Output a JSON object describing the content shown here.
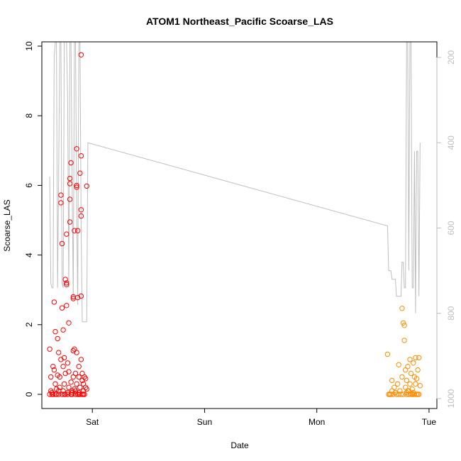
{
  "chart_data": {
    "type": "scatter",
    "title": "ATOM1 Northeast_Pacific Scoarse_LAS",
    "xlabel": "Date",
    "ylabel": "Scoarse_LAS",
    "x_ticks": [
      "Sat",
      "Sun",
      "Mon",
      "Tue"
    ],
    "x_tick_positions_days": [
      1,
      2,
      3,
      4
    ],
    "xlim_days": [
      0.55,
      4.07
    ],
    "ylim": [
      0,
      10
    ],
    "y_ticks": [
      "0",
      "2",
      "4",
      "6",
      "8",
      "10"
    ],
    "y2": {
      "label": "",
      "reversed": true,
      "lim": [
        1000,
        200
      ],
      "ticks": [
        "200",
        "400",
        "600",
        "800",
        "1000"
      ],
      "color": "#bebebe"
    },
    "colors": {
      "series1": "#ff0000",
      "series2": "#ff8c00",
      "line": "#bebebe"
    },
    "series": [
      {
        "name": "",
        "color": "#ff0000",
        "points": [
          [
            0.62,
            0.0
          ],
          [
            0.63,
            0.1
          ],
          [
            0.64,
            0.05
          ],
          [
            0.62,
            1.3
          ],
          [
            0.63,
            0.5
          ],
          [
            0.65,
            0.0
          ],
          [
            0.65,
            0.8
          ],
          [
            0.66,
            0.7
          ],
          [
            0.66,
            2.65
          ],
          [
            0.67,
            1.8
          ],
          [
            0.67,
            0.3
          ],
          [
            0.68,
            0.0
          ],
          [
            0.68,
            0.15
          ],
          [
            0.69,
            0.55
          ],
          [
            0.69,
            1.6
          ],
          [
            0.7,
            1.2
          ],
          [
            0.7,
            0.0
          ],
          [
            0.71,
            0.2
          ],
          [
            0.71,
            0.5
          ],
          [
            0.72,
            1.0
          ],
          [
            0.72,
            5.5
          ],
          [
            0.72,
            5.72
          ],
          [
            0.73,
            0.0
          ],
          [
            0.73,
            4.33
          ],
          [
            0.73,
            2.48
          ],
          [
            0.74,
            0.8
          ],
          [
            0.74,
            1.85
          ],
          [
            0.74,
            0.1
          ],
          [
            0.75,
            1.05
          ],
          [
            0.75,
            0.3
          ],
          [
            0.76,
            0.0
          ],
          [
            0.76,
            0.6
          ],
          [
            0.76,
            3.3
          ],
          [
            0.77,
            3.2
          ],
          [
            0.77,
            3.15
          ],
          [
            0.77,
            2.55
          ],
          [
            0.77,
            4.6
          ],
          [
            0.78,
            0.9
          ],
          [
            0.78,
            0.0
          ],
          [
            0.79,
            0.2
          ],
          [
            0.79,
            0.65
          ],
          [
            0.79,
            2.05
          ],
          [
            0.8,
            6.2
          ],
          [
            0.8,
            6.05
          ],
          [
            0.8,
            5.6
          ],
          [
            0.8,
            4.95
          ],
          [
            0.81,
            6.65
          ],
          [
            0.81,
            0.0
          ],
          [
            0.81,
            0.35
          ],
          [
            0.82,
            0.1
          ],
          [
            0.82,
            0.0
          ],
          [
            0.83,
            0.5
          ],
          [
            0.83,
            1.25
          ],
          [
            0.83,
            2.75
          ],
          [
            0.83,
            2.8
          ],
          [
            0.84,
            4.7
          ],
          [
            0.84,
            1.3
          ],
          [
            0.84,
            0.15
          ],
          [
            0.85,
            0.0
          ],
          [
            0.85,
            0.6
          ],
          [
            0.86,
            1.2
          ],
          [
            0.86,
            0.3
          ],
          [
            0.86,
            6.0
          ],
          [
            0.86,
            5.95
          ],
          [
            0.86,
            7.05
          ],
          [
            0.87,
            4.7
          ],
          [
            0.87,
            2.78
          ],
          [
            0.87,
            0.0
          ],
          [
            0.88,
            0.05
          ],
          [
            0.88,
            0.5
          ],
          [
            0.88,
            0.8
          ],
          [
            0.89,
            6.35
          ],
          [
            0.89,
            0.2
          ],
          [
            0.89,
            0.0
          ],
          [
            0.9,
            1.0
          ],
          [
            0.9,
            5.3
          ],
          [
            0.9,
            5.12
          ],
          [
            0.9,
            6.85
          ],
          [
            0.9,
            9.75
          ],
          [
            0.9,
            2.82
          ],
          [
            0.91,
            0.6
          ],
          [
            0.91,
            0.4
          ],
          [
            0.91,
            0.0
          ],
          [
            0.92,
            0.1
          ],
          [
            0.92,
            0.3
          ],
          [
            0.93,
            0.5
          ],
          [
            0.93,
            0.0
          ],
          [
            0.94,
            0.2
          ],
          [
            0.94,
            0.45
          ],
          [
            0.95,
            0.15
          ],
          [
            0.95,
            5.98
          ],
          [
            0.64,
            0.0
          ],
          [
            0.67,
            0.0
          ],
          [
            0.7,
            0.1
          ],
          [
            0.75,
            0.0
          ],
          [
            0.78,
            0.05
          ],
          [
            0.82,
            0.05
          ],
          [
            0.85,
            0.1
          ],
          [
            0.88,
            0.0
          ],
          [
            0.92,
            0.0
          ]
        ]
      },
      {
        "name": "",
        "color": "#ff8c00",
        "points": [
          [
            3.63,
            1.15
          ],
          [
            3.64,
            0.0
          ],
          [
            3.65,
            0.0
          ],
          [
            3.66,
            0.0
          ],
          [
            3.67,
            0.1
          ],
          [
            3.67,
            0.4
          ],
          [
            3.68,
            0.0
          ],
          [
            3.69,
            0.2
          ],
          [
            3.7,
            0.05
          ],
          [
            3.71,
            0.0
          ],
          [
            3.72,
            0.3
          ],
          [
            3.73,
            0.0
          ],
          [
            3.73,
            0.85
          ],
          [
            3.74,
            0.1
          ],
          [
            3.75,
            0.0
          ],
          [
            3.76,
            2.47
          ],
          [
            3.76,
            0.5
          ],
          [
            3.77,
            2.05
          ],
          [
            3.77,
            0.0
          ],
          [
            3.78,
            1.55
          ],
          [
            3.78,
            1.98
          ],
          [
            3.79,
            0.2
          ],
          [
            3.79,
            0.7
          ],
          [
            3.8,
            0.0
          ],
          [
            3.8,
            0.4
          ],
          [
            3.81,
            0.8
          ],
          [
            3.81,
            0.1
          ],
          [
            3.82,
            0.0
          ],
          [
            3.83,
            0.3
          ],
          [
            3.83,
            1.0
          ],
          [
            3.84,
            0.6
          ],
          [
            3.84,
            0.0
          ],
          [
            3.85,
            0.0
          ],
          [
            3.85,
            0.15
          ],
          [
            3.86,
            0.9
          ],
          [
            3.86,
            0.0
          ],
          [
            3.87,
            0.5
          ],
          [
            3.87,
            0.0
          ],
          [
            3.88,
            1.05
          ],
          [
            3.88,
            0.3
          ],
          [
            3.89,
            0.0
          ],
          [
            3.89,
            0.45
          ],
          [
            3.9,
            0.0
          ],
          [
            3.9,
            0.7
          ],
          [
            3.91,
            1.05
          ],
          [
            3.91,
            0.0
          ],
          [
            3.92,
            0.25
          ],
          [
            3.8,
            0.05
          ],
          [
            3.82,
            0.1
          ],
          [
            3.86,
            0.05
          ]
        ]
      }
    ],
    "line_series": {
      "name": "",
      "axis": "y2",
      "color": "#bebebe",
      "points": [
        [
          0.62,
          480
        ],
        [
          0.63,
          730
        ],
        [
          0.64,
          740
        ],
        [
          0.65,
          740
        ],
        [
          0.66,
          200
        ],
        [
          0.67,
          160
        ],
        [
          0.68,
          160
        ],
        [
          0.69,
          740
        ],
        [
          0.7,
          480
        ],
        [
          0.71,
          160
        ],
        [
          0.72,
          160
        ],
        [
          0.73,
          730
        ],
        [
          0.74,
          740
        ],
        [
          0.75,
          160
        ],
        [
          0.76,
          160
        ],
        [
          0.77,
          160
        ],
        [
          0.78,
          300
        ],
        [
          0.79,
          740
        ],
        [
          0.8,
          160
        ],
        [
          0.81,
          160
        ],
        [
          0.82,
          500
        ],
        [
          0.83,
          760
        ],
        [
          0.84,
          160
        ],
        [
          0.85,
          160
        ],
        [
          0.86,
          560
        ],
        [
          0.87,
          780
        ],
        [
          0.88,
          160
        ],
        [
          0.89,
          160
        ],
        [
          0.9,
          600
        ],
        [
          0.91,
          820
        ],
        [
          0.92,
          820
        ],
        [
          0.93,
          820
        ],
        [
          0.94,
          820
        ],
        [
          0.95,
          820
        ],
        [
          0.96,
          400
        ],
        [
          3.63,
          595
        ],
        [
          3.64,
          700
        ],
        [
          3.66,
          700
        ],
        [
          3.67,
          720
        ],
        [
          3.7,
          720
        ],
        [
          3.71,
          760
        ],
        [
          3.75,
          760
        ],
        [
          3.76,
          680
        ],
        [
          3.77,
          680
        ],
        [
          3.78,
          740
        ],
        [
          3.79,
          740
        ],
        [
          3.8,
          100
        ],
        [
          3.81,
          100
        ],
        [
          3.82,
          700
        ],
        [
          3.83,
          100
        ],
        [
          3.84,
          100
        ],
        [
          3.85,
          740
        ],
        [
          3.86,
          740
        ],
        [
          3.87,
          420
        ],
        [
          3.88,
          800
        ],
        [
          3.89,
          420
        ],
        [
          3.9,
          420
        ],
        [
          3.91,
          760
        ],
        [
          3.92,
          400
        ]
      ]
    }
  }
}
